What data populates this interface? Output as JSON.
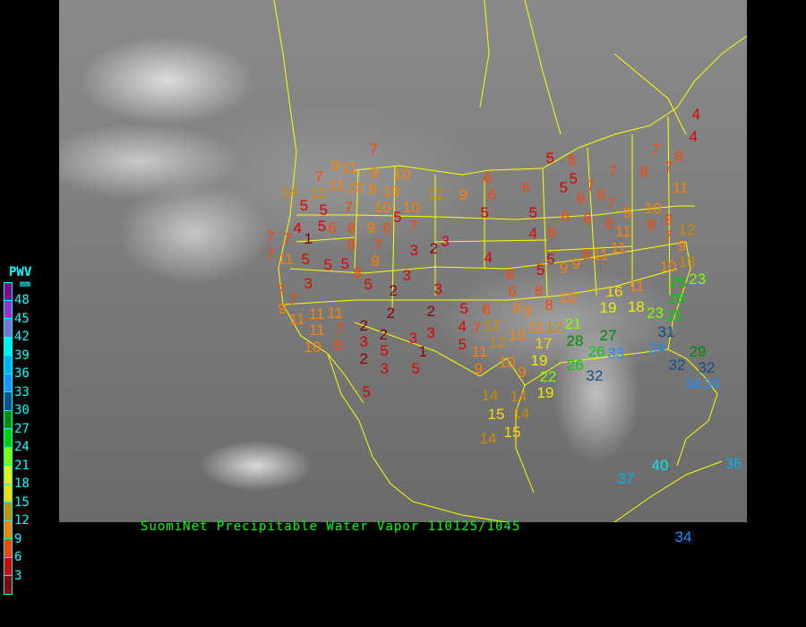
{
  "title": "SuomiNet Precipitable Water Vapor  110125/1045",
  "legend": {
    "title": "PWV",
    "unit": "mm",
    "labels": [
      "48",
      "45",
      "42",
      "39",
      "36",
      "33",
      "30",
      "27",
      "24",
      "21",
      "18",
      "15",
      "12",
      "9",
      "6",
      "3"
    ],
    "colors": [
      "#8b008b",
      "#9932cc",
      "#8470d0",
      "#00eeee",
      "#00b2ee",
      "#1e90ff",
      "#104e8b",
      "#008b00",
      "#00cd00",
      "#7fff00",
      "#eeee00",
      "#ffd700",
      "#cd8c00",
      "#ff8000",
      "#ff4500",
      "#dd0000",
      "#8b0000"
    ]
  },
  "map": {
    "border_color": "#ffff00",
    "stations": [
      "7",
      "9",
      "11",
      "9",
      "10",
      "7",
      "11",
      "10",
      "9",
      "10",
      "14",
      "12",
      "12",
      "9",
      "5",
      "5",
      "7",
      "10",
      "10",
      "5",
      "6",
      "8",
      "9",
      "6",
      "5",
      "7",
      "4",
      "7",
      "7",
      "1",
      "7",
      "11",
      "5",
      "5",
      "5",
      "8",
      "7",
      "9",
      "8",
      "5",
      "3",
      "2",
      "3",
      "3",
      "3",
      "3",
      "2",
      "7",
      "7",
      "9",
      "11",
      "11",
      "11",
      "7",
      "11",
      "10",
      "6",
      "2",
      "3",
      "2",
      "2",
      "2",
      "5",
      "3",
      "2",
      "3",
      "3",
      "1",
      "5",
      "5",
      "5",
      "6",
      "4",
      "5",
      "7",
      "4",
      "5",
      "6",
      "6",
      "6",
      "5",
      "4",
      "6",
      "5",
      "6",
      "5",
      "5",
      "7",
      "7",
      "6",
      "6",
      "7",
      "6",
      "6",
      "8",
      "9",
      "10",
      "8",
      "8",
      "7",
      "12",
      "9",
      "11",
      "11",
      "11",
      "8",
      "9",
      "9",
      "5",
      "5",
      "8",
      "7",
      "8",
      "7",
      "8",
      "11",
      "4",
      "4",
      "10",
      "13",
      "23",
      "6",
      "8",
      "9",
      "8",
      "10",
      "9",
      "12",
      "12",
      "10",
      "11",
      "12",
      "21",
      "17",
      "28",
      "27",
      "26",
      "33",
      "11",
      "9",
      "10",
      "9",
      "19",
      "22",
      "19",
      "26",
      "32",
      "16",
      "19",
      "11",
      "18",
      "23",
      "25",
      "26",
      "25",
      "31",
      "34",
      "29",
      "32",
      "32",
      "34",
      "34",
      "14",
      "14",
      "14",
      "15",
      "15",
      "14",
      "37",
      "40",
      "36",
      "34"
    ]
  }
}
